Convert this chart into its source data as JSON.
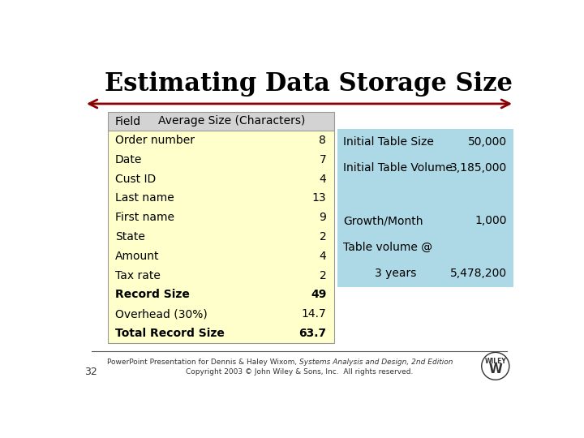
{
  "title": "Estimating Data Storage Size",
  "bg_color": "#ffffff",
  "title_color": "#000000",
  "arrow_color": "#8b0000",
  "left_table_bg": "#ffffcc",
  "left_header_bg": "#d3d3d3",
  "right_table_bg": "#add8e6",
  "header_row": [
    "Field",
    "Average Size (Characters)"
  ],
  "left_fields": [
    "Order number",
    "Date",
    "Cust ID",
    "Last name",
    "First name",
    "State",
    "Amount",
    "Tax rate",
    "Record Size",
    "Overhead (30%)",
    "Total Record Size"
  ],
  "left_values": [
    "8",
    "7",
    "4",
    "13",
    "9",
    "2",
    "4",
    "2",
    "49",
    "14.7",
    "63.7"
  ],
  "bold_rows": [
    8,
    10
  ],
  "right_lines": [
    {
      "label": "Initial Table Size",
      "value": "50,000",
      "label_align": "left",
      "bold": false
    },
    {
      "label": "Initial Table Volume",
      "value": "3,185,000",
      "label_align": "left",
      "bold": false
    },
    {
      "label": "",
      "value": "",
      "label_align": "left",
      "bold": false
    },
    {
      "label": "Growth/Month",
      "value": "1,000",
      "label_align": "left",
      "bold": false
    },
    {
      "label": "Table volume @",
      "value": "",
      "label_align": "left",
      "bold": false
    },
    {
      "label": "3 years",
      "value": "5,478,200",
      "label_align": "right_indent",
      "bold": false
    }
  ],
  "footer_line1": "PowerPoint Presentation for Dennis & Haley Wixom, ",
  "footer_line1_italic": "Systems Analysis and Design, 2nd Edition",
  "footer_line2": "Copyright 2003 © John Wiley & Sons, Inc.  All rights reserved.",
  "page_number": "32",
  "title_fontsize": 22,
  "header_fontsize": 10,
  "body_fontsize": 10
}
